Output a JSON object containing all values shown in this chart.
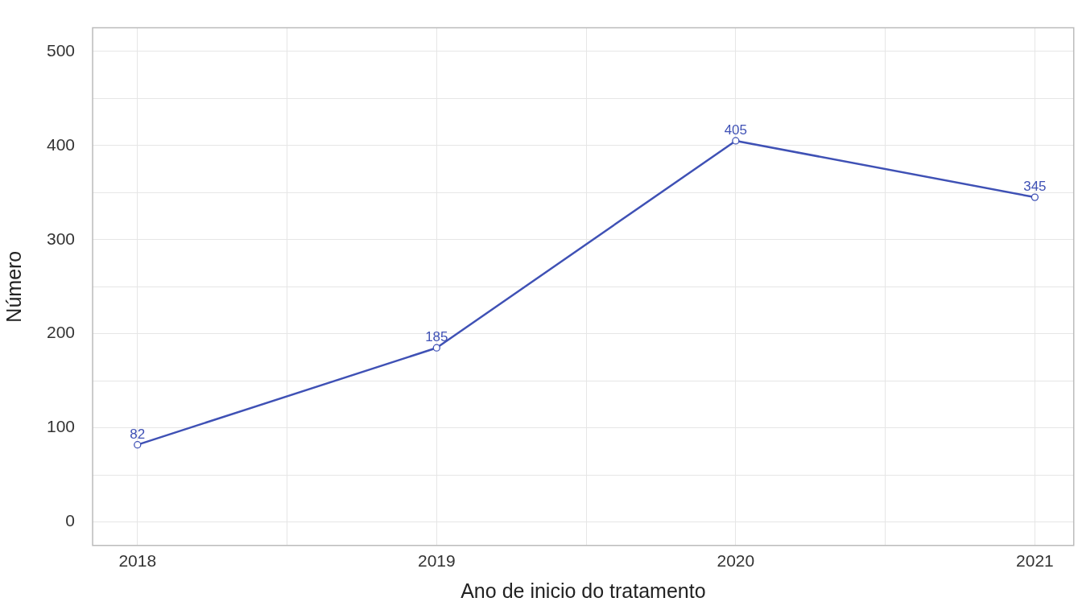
{
  "chart_data": {
    "type": "line",
    "xlabel": "Ano de inicio do tratamento",
    "ylabel": "Número",
    "x": [
      2018,
      2019,
      2020,
      2021
    ],
    "series": [
      {
        "color": "#3f51b5",
        "values": [
          82,
          185,
          405,
          345
        ]
      }
    ],
    "xlim": [
      2017.85,
      2021.13
    ],
    "xticks": [
      2018,
      {
        "value": 2018.5,
        "label": null
      },
      2019,
      {
        "value": 2019.5,
        "label": null
      },
      2020,
      {
        "value": 2020.5,
        "label": null
      },
      2021
    ],
    "ylim": [
      -25,
      525
    ],
    "yticks": [
      0,
      {
        "value": 50,
        "label": null
      },
      100,
      {
        "value": 150,
        "label": null
      },
      200,
      {
        "value": 250,
        "label": null
      },
      300,
      {
        "value": 350,
        "label": null
      },
      400,
      {
        "value": 450,
        "label": null
      },
      500
    ],
    "grid": true,
    "legend": false,
    "marker": "circle",
    "line_style": "solid",
    "data_labels": true
  }
}
